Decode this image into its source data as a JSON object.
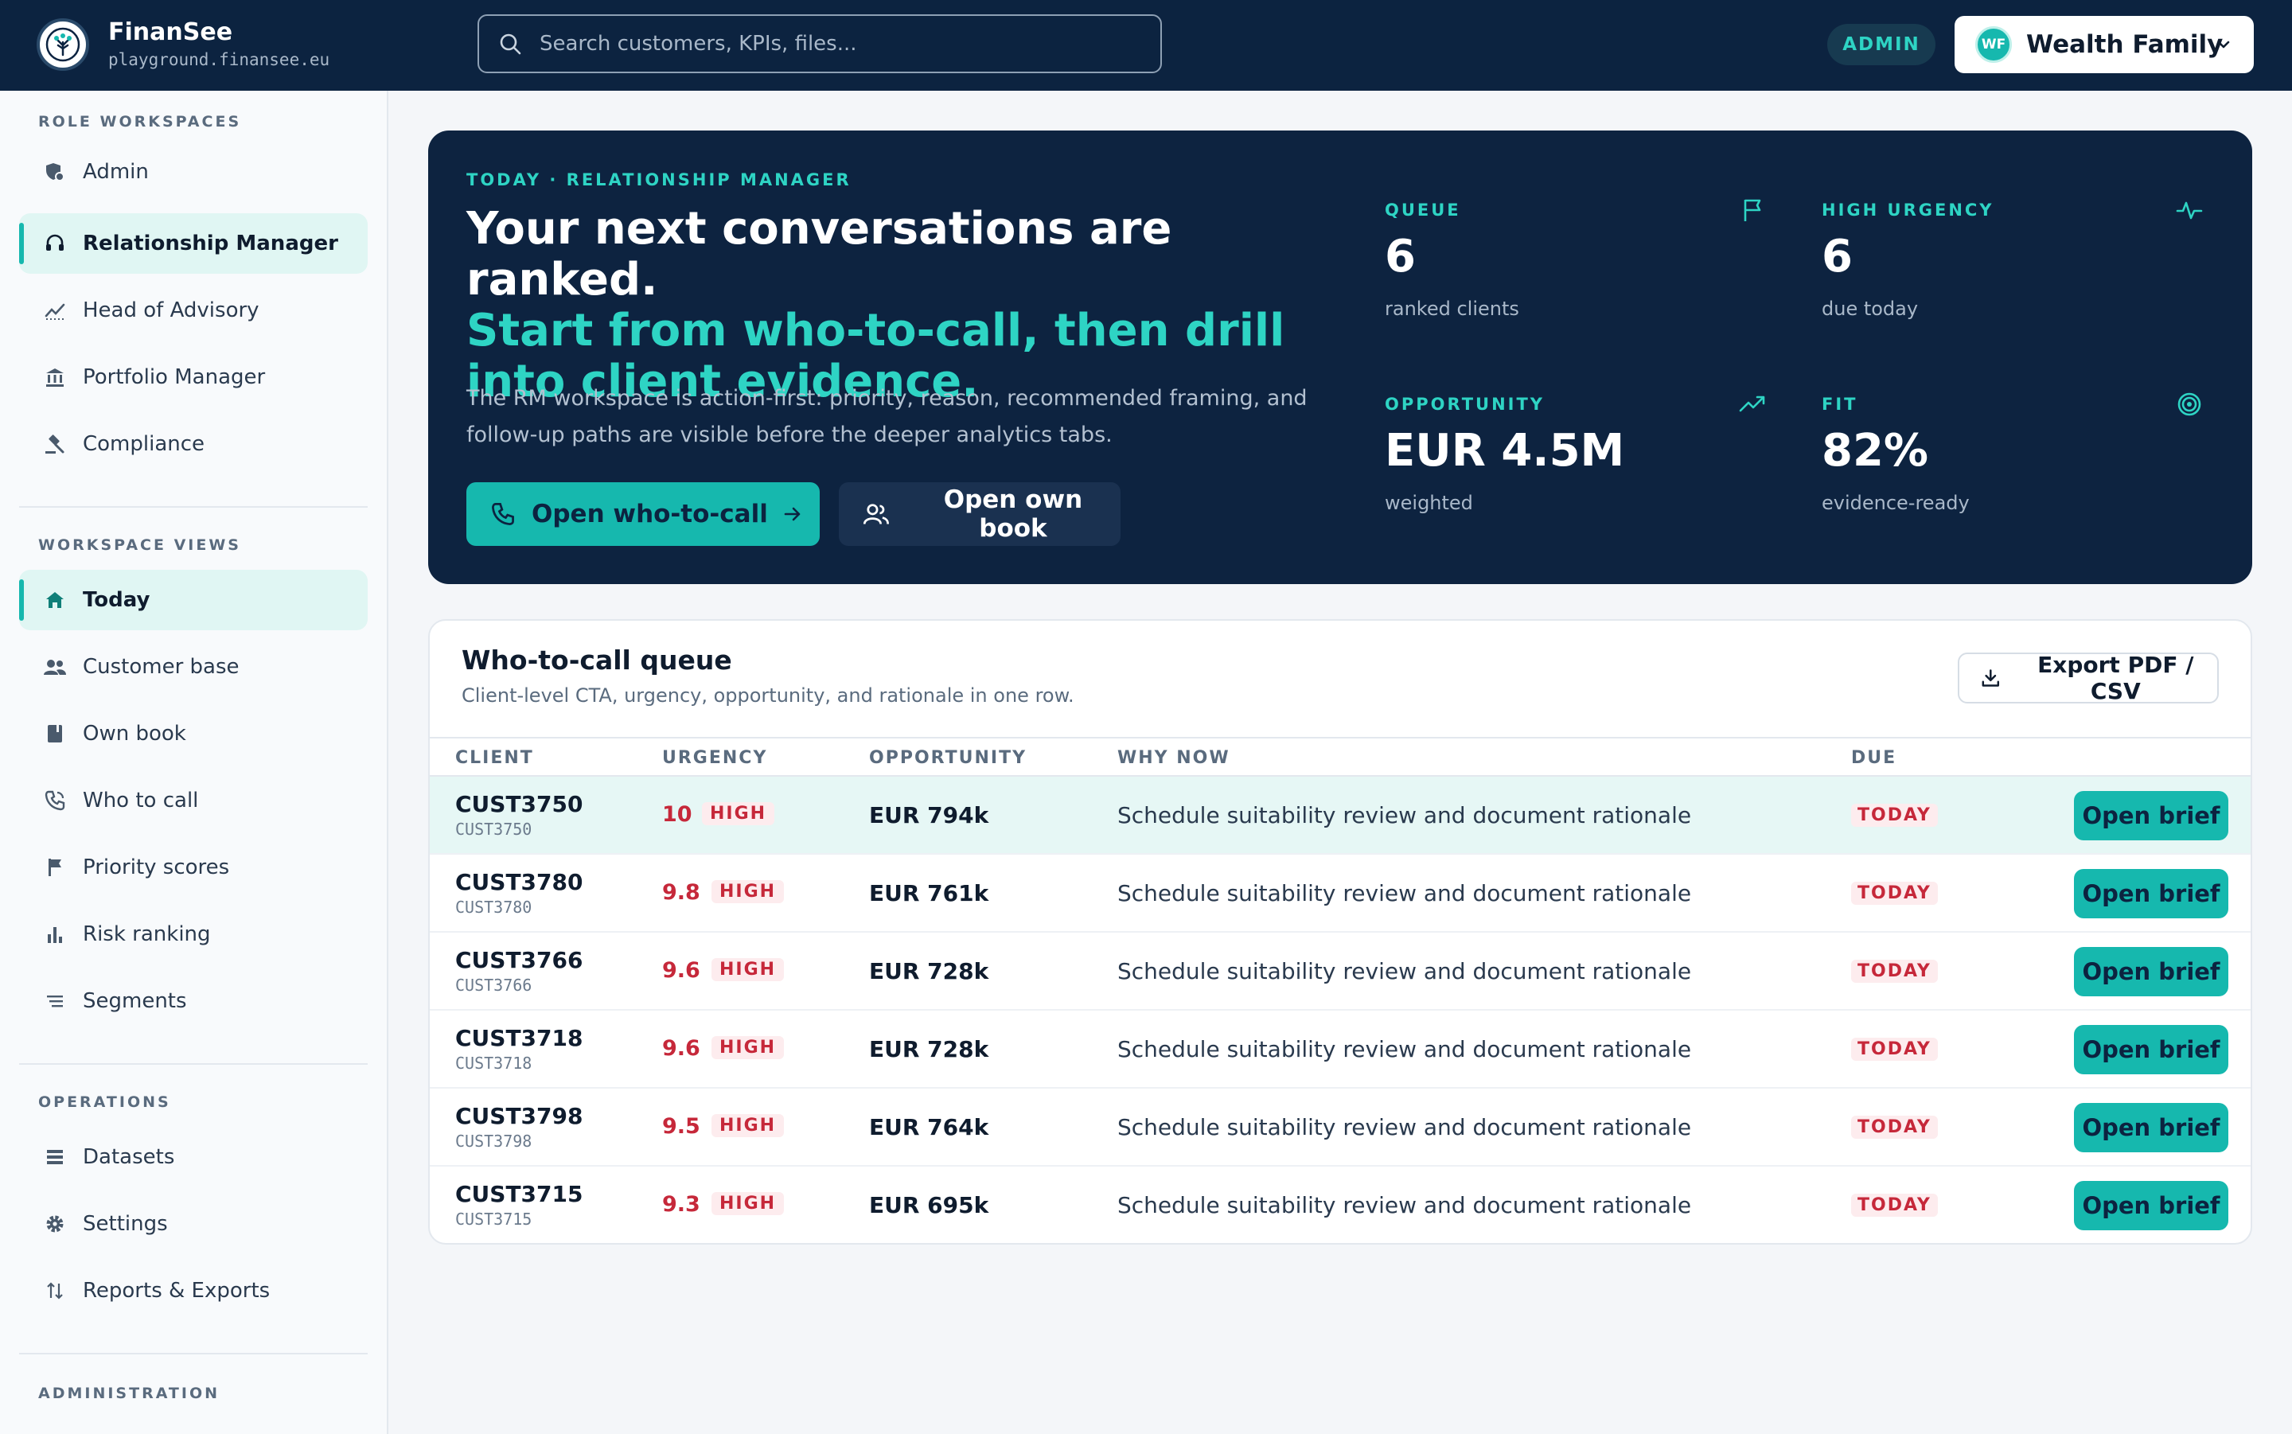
{
  "brand": {
    "name": "FinanSee",
    "domain": "playground.finansee.eu"
  },
  "search": {
    "placeholder": "Search customers, KPIs, files..."
  },
  "header": {
    "role_badge": "ADMIN",
    "org_initials": "WF",
    "org_name": "Wealth Family"
  },
  "sidebar": {
    "sections": [
      {
        "title": "ROLE WORKSPACES",
        "items": [
          {
            "label": "Admin",
            "icon": "admin-shield-icon"
          },
          {
            "label": "Relationship Manager",
            "icon": "headset-icon",
            "active": true
          },
          {
            "label": "Head of Advisory",
            "icon": "trend-line-icon"
          },
          {
            "label": "Portfolio Manager",
            "icon": "bank-icon"
          },
          {
            "label": "Compliance",
            "icon": "gavel-icon"
          }
        ]
      },
      {
        "title": "WORKSPACE VIEWS",
        "items": [
          {
            "label": "Today",
            "icon": "home-icon",
            "active": true
          },
          {
            "label": "Customer base",
            "icon": "people-icon"
          },
          {
            "label": "Own book",
            "icon": "book-icon"
          },
          {
            "label": "Who to call",
            "icon": "phone-icon"
          },
          {
            "label": "Priority scores",
            "icon": "flag-icon"
          },
          {
            "label": "Risk ranking",
            "icon": "bar-chart-icon"
          },
          {
            "label": "Segments",
            "icon": "segments-icon"
          }
        ]
      },
      {
        "title": "OPERATIONS",
        "items": [
          {
            "label": "Datasets",
            "icon": "datasets-icon"
          },
          {
            "label": "Settings",
            "icon": "gear-icon"
          },
          {
            "label": "Reports & Exports",
            "icon": "sort-arrows-icon"
          }
        ]
      },
      {
        "title": "ADMINISTRATION",
        "items": []
      }
    ]
  },
  "hero": {
    "eyebrow": "TODAY · RELATIONSHIP MANAGER",
    "headline": "Your next conversations are ranked.",
    "headline_accent": "Start from who-to-call, then drill into client evidence.",
    "description": "The RM workspace is action-first: priority, reason, recommended framing, and follow-up paths are visible before the deeper analytics tabs.",
    "primary_cta": "Open who-to-call",
    "secondary_cta": "Open own book",
    "kpis": [
      {
        "label": "QUEUE",
        "value": "6",
        "sub": "ranked clients",
        "icon": "flag-icon"
      },
      {
        "label": "HIGH URGENCY",
        "value": "6",
        "sub": "due today",
        "icon": "pulse-icon"
      },
      {
        "label": "OPPORTUNITY",
        "value": "EUR 4.5M",
        "sub": "weighted",
        "icon": "trending-up-icon"
      },
      {
        "label": "FIT",
        "value": "82%",
        "sub": "evidence-ready",
        "icon": "target-icon"
      }
    ]
  },
  "queue": {
    "title": "Who-to-call queue",
    "subtitle": "Client-level CTA, urgency, opportunity, and rationale in one row.",
    "export_label": "Export PDF / CSV",
    "columns": [
      "CLIENT",
      "URGENCY",
      "OPPORTUNITY",
      "WHY NOW",
      "DUE"
    ],
    "action_label": "Open brief",
    "rows": [
      {
        "client": "CUST3750",
        "client_sub": "CUST3750",
        "urgency": "10",
        "level": "HIGH",
        "opportunity": "EUR 794k",
        "why": "Schedule suitability review and document rationale",
        "due": "TODAY"
      },
      {
        "client": "CUST3780",
        "client_sub": "CUST3780",
        "urgency": "9.8",
        "level": "HIGH",
        "opportunity": "EUR 761k",
        "why": "Schedule suitability review and document rationale",
        "due": "TODAY"
      },
      {
        "client": "CUST3766",
        "client_sub": "CUST3766",
        "urgency": "9.6",
        "level": "HIGH",
        "opportunity": "EUR 728k",
        "why": "Schedule suitability review and document rationale",
        "due": "TODAY"
      },
      {
        "client": "CUST3718",
        "client_sub": "CUST3718",
        "urgency": "9.6",
        "level": "HIGH",
        "opportunity": "EUR 728k",
        "why": "Schedule suitability review and document rationale",
        "due": "TODAY"
      },
      {
        "client": "CUST3798",
        "client_sub": "CUST3798",
        "urgency": "9.5",
        "level": "HIGH",
        "opportunity": "EUR 764k",
        "why": "Schedule suitability review and document rationale",
        "due": "TODAY"
      },
      {
        "client": "CUST3715",
        "client_sub": "CUST3715",
        "urgency": "9.3",
        "level": "HIGH",
        "opportunity": "EUR 695k",
        "why": "Schedule suitability review and document rationale",
        "due": "TODAY"
      }
    ]
  },
  "colors": {
    "navy": "#0c2340",
    "teal": "#16b8ae",
    "accent": "#2ed4c4",
    "urgent_red": "#c6283a"
  }
}
